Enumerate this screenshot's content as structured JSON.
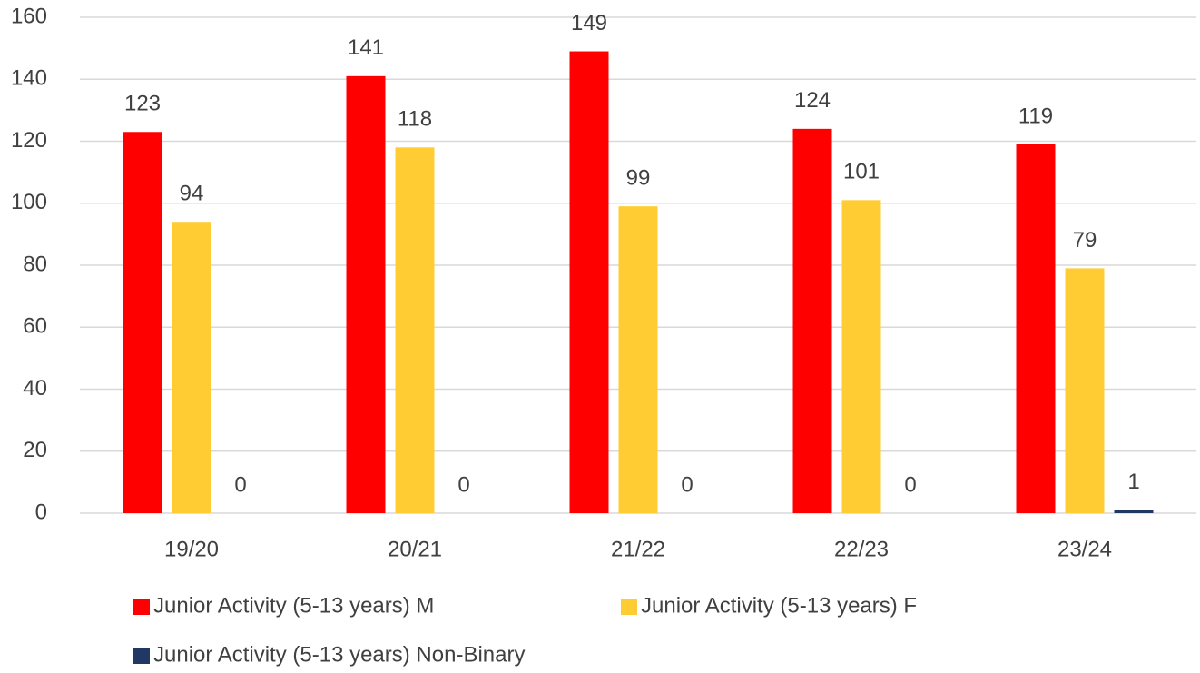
{
  "chart_data": {
    "type": "bar",
    "categories": [
      "19/20",
      "20/21",
      "21/22",
      "22/23",
      "23/24"
    ],
    "series": [
      {
        "name": "Junior Activity (5-13 years) M",
        "color": "#ff0000",
        "values": [
          123,
          141,
          149,
          124,
          119
        ]
      },
      {
        "name": "Junior Activity (5-13 years) F",
        "color": "#ffcd33",
        "values": [
          94,
          118,
          99,
          101,
          79
        ]
      },
      {
        "name": "Junior Activity (5-13 years) Non-Binary",
        "color": "#1f3864",
        "values": [
          0,
          0,
          0,
          0,
          1
        ]
      }
    ],
    "ylim": [
      0,
      160
    ],
    "yticks": [
      0,
      20,
      40,
      60,
      80,
      100,
      120,
      140,
      160
    ],
    "grid": true,
    "legend": "bottom"
  }
}
